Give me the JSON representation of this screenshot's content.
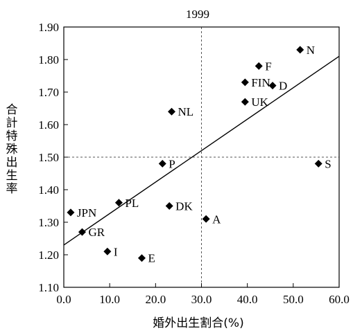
{
  "chart_data": {
    "type": "scatter",
    "title": "1999",
    "xlabel": "婚外出生割合(%)",
    "ylabel": "合計特殊出生率",
    "xlim": [
      0,
      60
    ],
    "ylim": [
      1.1,
      1.9
    ],
    "x_ticks": [
      "0.0",
      "10.0",
      "20.0",
      "30.0",
      "40.0",
      "50.0",
      "60.0"
    ],
    "y_ticks": [
      "1.10",
      "1.20",
      "1.30",
      "1.40",
      "1.50",
      "1.60",
      "1.70",
      "1.80",
      "1.90"
    ],
    "reference_lines": {
      "x": 30,
      "y": 1.5
    },
    "trend_line": {
      "x": [
        0,
        60
      ],
      "y": [
        1.23,
        1.81
      ]
    },
    "points": [
      {
        "label": "N",
        "x": 51.5,
        "y": 1.83
      },
      {
        "label": "F",
        "x": 42.5,
        "y": 1.78
      },
      {
        "label": "FIN",
        "x": 39.5,
        "y": 1.73
      },
      {
        "label": "D",
        "x": 45.5,
        "y": 1.72
      },
      {
        "label": "UK",
        "x": 39.5,
        "y": 1.67
      },
      {
        "label": "NL",
        "x": 23.5,
        "y": 1.64
      },
      {
        "label": "P",
        "x": 21.5,
        "y": 1.48
      },
      {
        "label": "S",
        "x": 55.5,
        "y": 1.48
      },
      {
        "label": "PL",
        "x": 12.0,
        "y": 1.36
      },
      {
        "label": "DK",
        "x": 23.0,
        "y": 1.35
      },
      {
        "label": "JPN",
        "x": 1.5,
        "y": 1.33
      },
      {
        "label": "A",
        "x": 31.0,
        "y": 1.31
      },
      {
        "label": "GR",
        "x": 4.0,
        "y": 1.27
      },
      {
        "label": "I",
        "x": 9.5,
        "y": 1.21
      },
      {
        "label": "E",
        "x": 17.0,
        "y": 1.19
      }
    ]
  }
}
